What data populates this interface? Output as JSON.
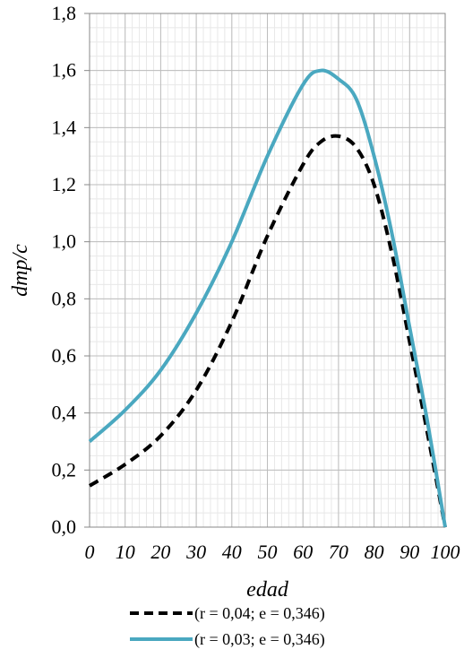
{
  "chart_data": {
    "type": "line",
    "xlabel": "edad",
    "ylabel": "dmp/c",
    "xlim": [
      0,
      100
    ],
    "ylim": [
      0,
      1.8
    ],
    "x_ticks": [
      "0",
      "10",
      "20",
      "30",
      "40",
      "50",
      "60",
      "70",
      "80",
      "90",
      "100"
    ],
    "y_ticks": [
      "0,0",
      "0,2",
      "0,4",
      "0,6",
      "0,8",
      "1,0",
      "1,2",
      "1,4",
      "1,6",
      "1,8"
    ],
    "grid": true,
    "legend_position": "bottom",
    "x": [
      0,
      10,
      20,
      30,
      40,
      50,
      60,
      65,
      70,
      75,
      80,
      85,
      90,
      95,
      100
    ],
    "series": [
      {
        "name": "(r = 0,04; e = 0,346)",
        "style": "dashed",
        "color": "#000000",
        "values": [
          0.145,
          0.22,
          0.32,
          0.48,
          0.72,
          1.02,
          1.27,
          1.35,
          1.37,
          1.33,
          1.2,
          0.96,
          0.65,
          0.33,
          0.0
        ]
      },
      {
        "name": "(r = 0,03; e = 0,346)",
        "style": "solid",
        "color": "#4aa8c0",
        "values": [
          0.3,
          0.41,
          0.55,
          0.75,
          1.0,
          1.3,
          1.55,
          1.6,
          1.57,
          1.5,
          1.3,
          1.03,
          0.7,
          0.37,
          0.0
        ]
      }
    ]
  }
}
